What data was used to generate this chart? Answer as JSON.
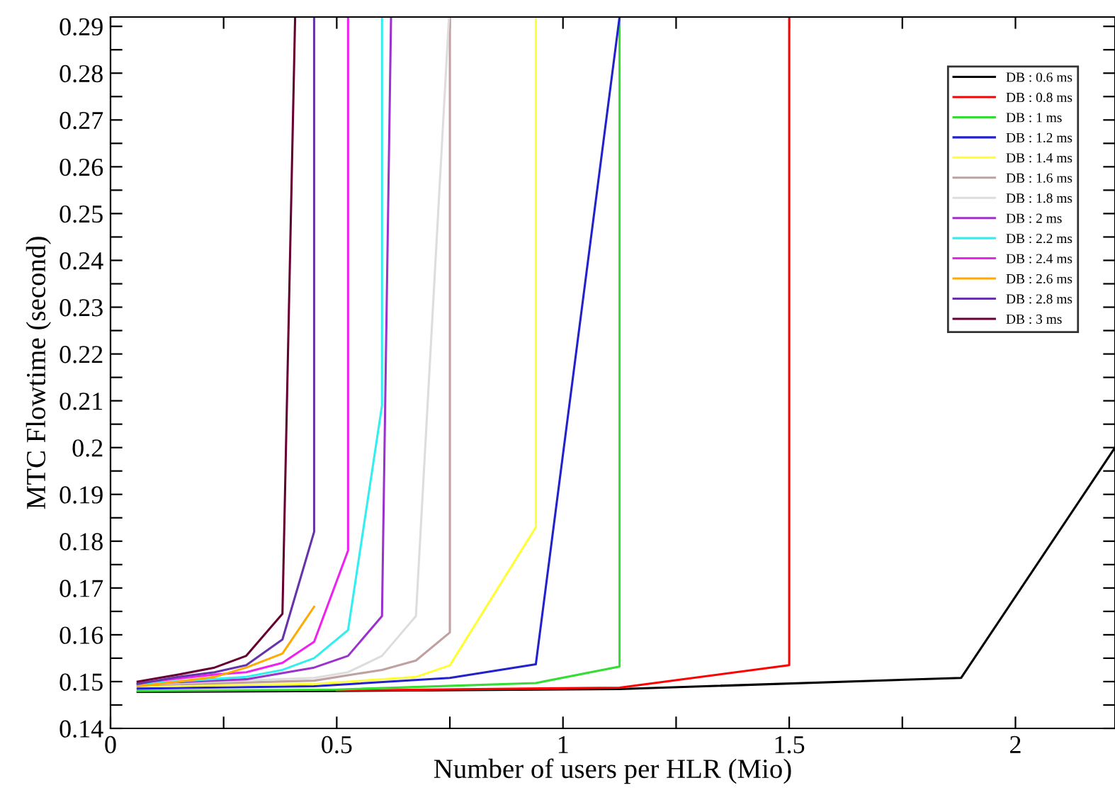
{
  "chart_data": {
    "type": "line",
    "xlabel": "Number of users per HLR (Mio)",
    "ylabel": "MTC Flowtime (second)",
    "xlim": [
      0,
      2.22
    ],
    "ylim": [
      0.14,
      0.292
    ],
    "xticks": [
      0,
      {
        "value": 0.25,
        "label": null
      },
      0.5,
      {
        "value": 0.75,
        "label": null
      },
      1,
      {
        "value": 1.25,
        "label": null
      },
      1.5,
      {
        "value": 1.75,
        "label": null
      },
      2
    ],
    "yticks": [
      0.14,
      {
        "value": 0.145,
        "label": null
      },
      0.15,
      {
        "value": 0.155,
        "label": null
      },
      0.16,
      {
        "value": 0.165,
        "label": null
      },
      0.17,
      {
        "value": 0.175,
        "label": null
      },
      0.18,
      {
        "value": 0.185,
        "label": null
      },
      0.19,
      {
        "value": 0.195,
        "label": null
      },
      0.2,
      {
        "value": 0.205,
        "label": null
      },
      0.21,
      {
        "value": 0.215,
        "label": null
      },
      0.22,
      {
        "value": 0.225,
        "label": null
      },
      0.23,
      {
        "value": 0.235,
        "label": null
      },
      0.24,
      {
        "value": 0.245,
        "label": null
      },
      0.25,
      {
        "value": 0.255,
        "label": null
      },
      0.26,
      {
        "value": 0.265,
        "label": null
      },
      0.27,
      {
        "value": 0.275,
        "label": null
      },
      0.28,
      {
        "value": 0.285,
        "label": null
      },
      0.29
    ],
    "grid": false,
    "legend": "top right",
    "marker": "none",
    "line_style": "solid",
    "series": [
      {
        "name": "DB : 0.6 ms",
        "color": "#000000",
        "x": [
          0.06,
          0.5,
          1.125,
          1.88,
          2.22
        ],
        "values": [
          0.1478,
          0.148,
          0.1484,
          0.1508,
          0.2
        ]
      },
      {
        "name": "DB : 0.8 ms",
        "color": "#ff0000",
        "x": [
          0.5,
          1.125,
          1.5,
          1.5
        ],
        "values": [
          0.1481,
          0.1487,
          0.1535,
          0.292
        ]
      },
      {
        "name": "DB : 1 ms",
        "color": "#33dd33",
        "x": [
          0.06,
          0.5,
          0.94,
          1.125,
          1.125
        ],
        "values": [
          0.148,
          0.1483,
          0.1497,
          0.1532,
          0.292
        ]
      },
      {
        "name": "DB : 1.2 ms",
        "color": "#2222cc",
        "x": [
          0.06,
          0.45,
          0.75,
          0.94,
          1.125
        ],
        "values": [
          0.1485,
          0.149,
          0.1508,
          0.1537,
          0.292
        ]
      },
      {
        "name": "DB : 1.4 ms",
        "color": "#ffff33",
        "x": [
          0.06,
          0.45,
          0.675,
          0.75,
          0.94,
          0.94
        ],
        "values": [
          0.149,
          0.1495,
          0.151,
          0.1535,
          0.183,
          0.292
        ]
      },
      {
        "name": "DB : 1.6 ms",
        "color": "#c0a0a0",
        "x": [
          0.06,
          0.45,
          0.6,
          0.675,
          0.75,
          0.75
        ],
        "values": [
          0.1492,
          0.1502,
          0.1525,
          0.1545,
          0.1605,
          0.292
        ]
      },
      {
        "name": "DB : 1.8 ms",
        "color": "#dddddd",
        "x": [
          0.06,
          0.45,
          0.525,
          0.6,
          0.675,
          0.748
        ],
        "values": [
          0.1494,
          0.1508,
          0.152,
          0.1555,
          0.164,
          0.292
        ]
      },
      {
        "name": "DB : 2 ms",
        "color": "#9933cc",
        "x": [
          0.06,
          0.3,
          0.45,
          0.525,
          0.6,
          0.62
        ],
        "values": [
          0.1495,
          0.1505,
          0.153,
          0.1555,
          0.164,
          0.292
        ]
      },
      {
        "name": "DB : 2.2 ms",
        "color": "#33eeee",
        "x": [
          0.06,
          0.3,
          0.38,
          0.45,
          0.525,
          0.6,
          0.6
        ],
        "values": [
          0.1495,
          0.151,
          0.1525,
          0.155,
          0.161,
          0.209,
          0.292
        ]
      },
      {
        "name": "DB : 2.4 ms",
        "color": "#ee22ee",
        "x": [
          0.06,
          0.23,
          0.3,
          0.38,
          0.45,
          0.525,
          0.525
        ],
        "values": [
          0.1497,
          0.1515,
          0.152,
          0.154,
          0.1585,
          0.178,
          0.292
        ]
      },
      {
        "name": "DB : 2.6 ms",
        "color": "#ffaa00",
        "x": [
          0.06,
          0.15,
          0.23,
          0.3,
          0.38,
          0.45
        ],
        "values": [
          0.149,
          0.15,
          0.151,
          0.153,
          0.156,
          0.166
        ]
      },
      {
        "name": "DB : 2.8 ms",
        "color": "#6633aa",
        "x": [
          0.06,
          0.15,
          0.23,
          0.3,
          0.38,
          0.45,
          0.45
        ],
        "values": [
          0.1495,
          0.151,
          0.152,
          0.1535,
          0.159,
          0.182,
          0.292
        ]
      },
      {
        "name": "DB : 3 ms",
        "color": "#660033",
        "x": [
          0.06,
          0.15,
          0.23,
          0.3,
          0.38,
          0.408
        ],
        "values": [
          0.15,
          0.1515,
          0.153,
          0.1555,
          0.1645,
          0.292
        ]
      }
    ]
  }
}
